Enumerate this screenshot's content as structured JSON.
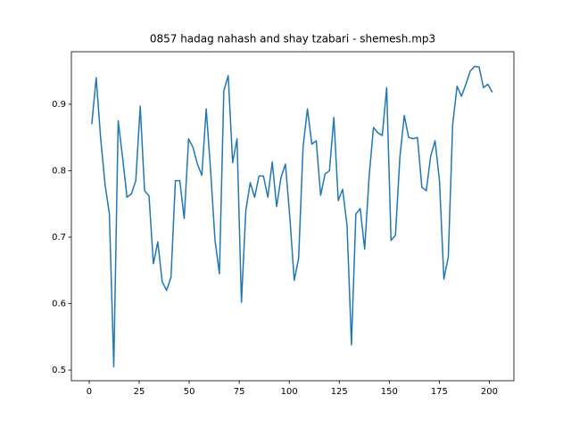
{
  "chart_data": {
    "type": "line",
    "title": "0857 hadag nahash and shay tzabari - shemesh.mp3",
    "x": [
      1.3,
      3.5,
      5.7,
      7.9,
      10.1,
      12.3,
      14.5,
      16.7,
      18.9,
      21.1,
      23.3,
      25.5,
      27.7,
      29.9,
      32.1,
      34.3,
      36.5,
      38.7,
      40.9,
      43.1,
      45.3,
      47.5,
      49.7,
      51.9,
      54.1,
      56.3,
      58.5,
      60.7,
      62.9,
      65.1,
      67.3,
      69.5,
      71.7,
      73.9,
      76.1,
      78.3,
      80.5,
      82.7,
      84.9,
      87.1,
      89.3,
      91.5,
      93.7,
      95.9,
      98.1,
      100.3,
      102.5,
      104.7,
      106.9,
      109.1,
      111.3,
      113.5,
      115.7,
      117.9,
      120.1,
      122.3,
      124.5,
      126.7,
      128.9,
      131.1,
      133.3,
      135.5,
      137.7,
      139.9,
      142.1,
      144.3,
      146.5,
      148.7,
      150.9,
      153.1,
      155.3,
      157.5,
      159.7,
      161.9,
      164.1,
      166.3,
      168.5,
      170.7,
      172.9,
      175.1,
      177.3,
      179.5,
      181.7,
      183.9,
      186.1,
      188.3,
      190.5,
      192.7,
      194.9,
      197.1,
      199.3,
      201.5
    ],
    "series": [
      {
        "color": "#1f77b4",
        "values": [
          0.87,
          0.94,
          0.85,
          0.78,
          0.735,
          0.505,
          0.875,
          0.82,
          0.76,
          0.765,
          0.785,
          0.897,
          0.77,
          0.762,
          0.66,
          0.693,
          0.633,
          0.62,
          0.64,
          0.785,
          0.785,
          0.728,
          0.848,
          0.835,
          0.81,
          0.793,
          0.893,
          0.8,
          0.695,
          0.645,
          0.92,
          0.943,
          0.812,
          0.848,
          0.602,
          0.74,
          0.782,
          0.76,
          0.792,
          0.792,
          0.76,
          0.813,
          0.746,
          0.79,
          0.81,
          0.73,
          0.635,
          0.668,
          0.835,
          0.893,
          0.84,
          0.845,
          0.763,
          0.795,
          0.8,
          0.88,
          0.755,
          0.772,
          0.717,
          0.538,
          0.735,
          0.743,
          0.682,
          0.79,
          0.865,
          0.857,
          0.853,
          0.925,
          0.695,
          0.703,
          0.82,
          0.883,
          0.85,
          0.848,
          0.85,
          0.775,
          0.77,
          0.822,
          0.845,
          0.785,
          0.637,
          0.67,
          0.87,
          0.927,
          0.912,
          0.93,
          0.95,
          0.957,
          0.956,
          0.925,
          0.93,
          0.918
        ]
      }
    ],
    "xlim": [
      -8.9,
      212.3
    ],
    "ylim": [
      0.484,
      0.979
    ],
    "xticks": [
      0,
      25,
      50,
      75,
      100,
      125,
      150,
      175,
      200
    ],
    "yticks": [
      0.5,
      0.6,
      0.7,
      0.8,
      0.9
    ]
  }
}
